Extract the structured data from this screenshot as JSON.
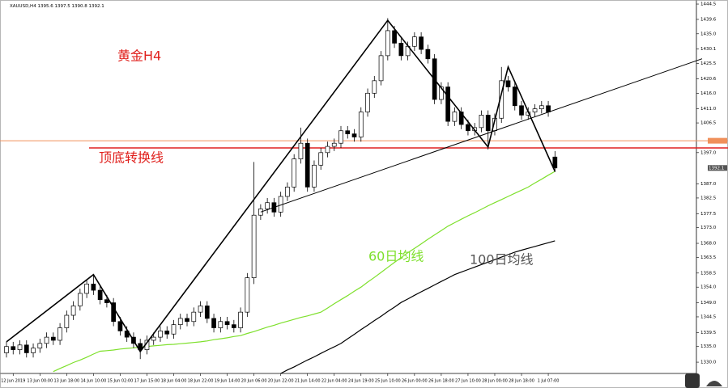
{
  "symbol": "XAUUSD,H4",
  "chart_data": {
    "type": "candlestick",
    "categories": [
      null,
      "12 Jun 2019",
      null,
      null,
      null,
      "13 Jun 00:00",
      null,
      null,
      null,
      "13 Jun 18:00",
      null,
      null,
      null,
      "14 Jun 10:00",
      null,
      null,
      null,
      "15 Jun 02:00",
      null,
      null,
      null,
      "17 Jun 15:00",
      null,
      null,
      null,
      "18 Jun 04:00",
      null,
      null,
      null,
      "18 Jun 22:00",
      null,
      null,
      null,
      "19 Jun 14:00",
      null,
      null,
      null,
      "20 Jun 06:00",
      null,
      null,
      null,
      "20 Jun 22:00",
      null,
      null,
      null,
      "21 Jun 14:00",
      null,
      null,
      null,
      "22 Jun 04:00",
      null,
      null,
      null,
      "24 Jun 19:00",
      null,
      null,
      null,
      "25 Jun 10:00",
      null,
      null,
      null,
      "26 Jun 00:00",
      null,
      null,
      null,
      "26 Jun 18:00",
      null,
      null,
      null,
      "27 Jun 10:00",
      null,
      null,
      null,
      "28 Jun 00:00",
      null,
      null,
      null,
      "28 Jun 18:00",
      null,
      null,
      null,
      "1 Jul 07:00",
      null
    ],
    "candles": [
      [
        1333,
        1336.5,
        1331.5,
        1335
      ],
      [
        1335,
        1336.5,
        1332.5,
        1334
      ],
      [
        1334,
        1337,
        1332.5,
        1335.5
      ],
      [
        1335.5,
        1337,
        1331.5,
        1333
      ],
      [
        1333,
        1336,
        1331.5,
        1334.5
      ],
      [
        1334.5,
        1337.5,
        1333,
        1336
      ],
      [
        1336,
        1339.5,
        1334.5,
        1338
      ],
      [
        1338,
        1339.5,
        1335.5,
        1337
      ],
      [
        1337,
        1342.5,
        1335.5,
        1341
      ],
      [
        1341,
        1346.5,
        1339.5,
        1345
      ],
      [
        1345,
        1349.5,
        1343.5,
        1348
      ],
      [
        1348,
        1353.5,
        1346.5,
        1352
      ],
      [
        1352,
        1356.5,
        1350.5,
        1355
      ],
      [
        1355,
        1358,
        1351.5,
        1353
      ],
      [
        1353,
        1354.5,
        1348.5,
        1350
      ],
      [
        1350,
        1351.5,
        1347.5,
        1349
      ],
      [
        1349,
        1350.5,
        1341.5,
        1343
      ],
      [
        1343,
        1344.5,
        1338.5,
        1340
      ],
      [
        1340,
        1341.5,
        1336.5,
        1338
      ],
      [
        1338,
        1339.5,
        1334.5,
        1336
      ],
      [
        1336,
        1337.5,
        1331,
        1334
      ],
      [
        1334,
        1338.5,
        1332.5,
        1337
      ],
      [
        1337,
        1339.5,
        1335.5,
        1338
      ],
      [
        1338,
        1341.5,
        1336.5,
        1340
      ],
      [
        1340,
        1341.5,
        1337.5,
        1339
      ],
      [
        1339,
        1343.5,
        1337.5,
        1342
      ],
      [
        1342,
        1345.5,
        1340.5,
        1344
      ],
      [
        1344,
        1345.5,
        1341.5,
        1343
      ],
      [
        1343,
        1347.5,
        1341.5,
        1346
      ],
      [
        1346,
        1349.5,
        1344.5,
        1348
      ],
      [
        1348,
        1349.5,
        1342.5,
        1344
      ],
      [
        1344,
        1345.5,
        1339.5,
        1341
      ],
      [
        1341,
        1344.5,
        1339.5,
        1343
      ],
      [
        1343,
        1344.5,
        1340.5,
        1342
      ],
      [
        1342,
        1343.5,
        1339.5,
        1341
      ],
      [
        1341,
        1347.5,
        1339.5,
        1346
      ],
      [
        1346,
        1358.5,
        1344.5,
        1357
      ],
      [
        1357,
        1394,
        1355,
        1377
      ],
      [
        1377,
        1380.5,
        1375.5,
        1379
      ],
      [
        1379,
        1382.5,
        1377.5,
        1381
      ],
      [
        1381,
        1382.5,
        1376.5,
        1378
      ],
      [
        1378,
        1384.5,
        1376.5,
        1383
      ],
      [
        1383,
        1387.5,
        1381.5,
        1386
      ],
      [
        1386,
        1396.5,
        1384.5,
        1395
      ],
      [
        1395,
        1405,
        1393.5,
        1400
      ],
      [
        1400,
        1401.5,
        1384.5,
        1386
      ],
      [
        1386,
        1394.5,
        1384.5,
        1393
      ],
      [
        1393,
        1398.5,
        1391.5,
        1397
      ],
      [
        1397,
        1400.5,
        1395.5,
        1399
      ],
      [
        1399,
        1401.5,
        1397.5,
        1400
      ],
      [
        1400,
        1405.5,
        1398.5,
        1404
      ],
      [
        1404,
        1405.5,
        1401.5,
        1403
      ],
      [
        1403,
        1404.5,
        1400.5,
        1402
      ],
      [
        1402,
        1411.5,
        1400.5,
        1410
      ],
      [
        1410,
        1417.5,
        1408.5,
        1416
      ],
      [
        1416,
        1421.5,
        1414.5,
        1420
      ],
      [
        1420,
        1429.5,
        1418.5,
        1428
      ],
      [
        1428,
        1440,
        1426.5,
        1436
      ],
      [
        1436,
        1437.5,
        1430.5,
        1432
      ],
      [
        1432,
        1433.5,
        1426.5,
        1428
      ],
      [
        1428,
        1432.5,
        1426.5,
        1431
      ],
      [
        1431,
        1435.5,
        1429.5,
        1434
      ],
      [
        1434,
        1435.5,
        1428.5,
        1430
      ],
      [
        1430,
        1431.5,
        1425.5,
        1427
      ],
      [
        1427,
        1428.5,
        1412.5,
        1414
      ],
      [
        1414,
        1419.5,
        1412.5,
        1418
      ],
      [
        1418,
        1419.5,
        1405.5,
        1407
      ],
      [
        1407,
        1411.5,
        1405.5,
        1410
      ],
      [
        1410,
        1411.5,
        1404.5,
        1406
      ],
      [
        1406,
        1407.5,
        1402.5,
        1404
      ],
      [
        1404,
        1406.5,
        1402.5,
        1405
      ],
      [
        1405,
        1410.5,
        1403.5,
        1409
      ],
      [
        1409,
        1410.5,
        1398,
        1404
      ],
      [
        1404,
        1409.5,
        1402.5,
        1408
      ],
      [
        1408,
        1424.4,
        1406.5,
        1420
      ],
      [
        1420,
        1421.5,
        1416.5,
        1418
      ],
      [
        1418,
        1419.5,
        1410.5,
        1412
      ],
      [
        1412,
        1413.5,
        1407.5,
        1409
      ],
      [
        1409,
        1411.5,
        1407.5,
        1410
      ],
      [
        1410,
        1412.5,
        1408.5,
        1411
      ],
      [
        1411,
        1413.5,
        1409.5,
        1412
      ],
      [
        1412,
        1413.5,
        1408.5,
        1410
      ],
      [
        1395.6,
        1397.5,
        1390.8,
        1392.1
      ]
    ],
    "ylim": [
      1326.4,
      1445.8
    ],
    "yticks": [
      1444.5,
      1439.6,
      {
        "value": 1435.0,
        "label": "1435.0"
      },
      1430.1,
      1425.5,
      1420.6,
      {
        "value": 1416.0,
        "label": "1416.0"
      },
      {
        "value": 1411.0,
        "label": "1411.0"
      },
      1406.5,
      {
        "value": 1397.0,
        "label": "1397.0"
      },
      {
        "value": 1387.0,
        "label": "1387.0"
      },
      1382.5,
      1377.5,
      {
        "value": 1373.0,
        "label": "1373.0"
      },
      {
        "value": 1368.0,
        "label": "1368.0"
      },
      1363.5,
      1358.5,
      {
        "value": 1354.0,
        "label": "1354.0"
      },
      {
        "value": 1349.0,
        "label": "1349.0"
      },
      1344.5,
      1339.5,
      {
        "value": 1335.0,
        "label": "1335.0"
      },
      {
        "value": 1330.0,
        "label": "1330.0"
      }
    ],
    "series": [
      {
        "name": "60日均线",
        "color": "#7ee02c",
        "values": [
          null,
          null,
          null,
          null,
          null,
          null,
          null,
          1327.0,
          1328.0,
          1328.9,
          1329.9,
          1330.7,
          1331.6,
          1332.6,
          1333.5,
          1333.7,
          1333.9,
          1334.2,
          1334.4,
          1334.6,
          1334.8,
          1335.0,
          1335.2,
          1335.4,
          1335.6,
          1335.7,
          1335.9,
          1336.1,
          1336.3,
          1336.5,
          1336.8,
          1337.2,
          1337.5,
          1337.8,
          1338.2,
          1338.5,
          1339.2,
          1339.8,
          1340.5,
          1341.2,
          1341.8,
          1342.5,
          1343.1,
          1343.7,
          1344.3,
          1344.8,
          1345.4,
          1346.0,
          1347.3,
          1348.7,
          1350.0,
          1351.3,
          1352.7,
          1354.0,
          1355.6,
          1357.1,
          1358.7,
          1360.3,
          1361.9,
          1363.4,
          1365.0,
          1366.4,
          1367.8,
          1369.3,
          1370.7,
          1372.1,
          1373.5,
          1374.6,
          1375.7,
          1376.8,
          1377.8,
          1378.9,
          1380.0,
          1381.0,
          1382.0,
          1383.0,
          1384.0,
          1385.0,
          1386.0,
          1387.3,
          1388.5,
          1389.8,
          1391.0
        ]
      },
      {
        "name": "100日均线",
        "color": "#000000",
        "values": [
          null,
          null,
          null,
          null,
          null,
          null,
          null,
          null,
          null,
          null,
          null,
          null,
          null,
          null,
          null,
          null,
          null,
          null,
          null,
          null,
          null,
          null,
          null,
          null,
          null,
          null,
          null,
          null,
          null,
          null,
          null,
          null,
          null,
          null,
          null,
          null,
          null,
          null,
          null,
          null,
          null,
          1326.4,
          1327.5,
          1328.5,
          1329.6,
          1330.7,
          1331.7,
          1332.8,
          1333.9,
          1334.9,
          1336.0,
          1337.5,
          1338.9,
          1340.4,
          1341.8,
          1343.3,
          1344.7,
          1346.2,
          1347.6,
          1349.1,
          1350.2,
          1351.4,
          1352.5,
          1353.6,
          1354.7,
          1355.8,
          1356.9,
          1358.0,
          1358.8,
          1359.6,
          1360.4,
          1361.2,
          1362.0,
          1362.8,
          1363.6,
          1364.4,
          1365.2,
          1365.8,
          1366.4,
          1367.0,
          1367.6,
          1368.2,
          1368.8
        ]
      }
    ],
    "lines": [
      {
        "color": "#000000",
        "x": [
          0,
          13,
          20,
          57,
          72,
          75,
          82
        ],
        "values": [
          1336.5,
          1358,
          1333.4,
          1439.3,
          1398.8,
          1424.4,
          1391
        ]
      },
      {
        "color": "#000000",
        "x": [
          38,
          104
        ],
        "values": [
          1378,
          1427
        ]
      }
    ],
    "hlines": [
      {
        "value": 1400.8,
        "color": "#f0905a"
      },
      {
        "value": 1398.5,
        "color": "#e02020"
      }
    ],
    "annotations": [
      {
        "text": "黄金H4",
        "color": "#e0201c"
      },
      {
        "text": "顶底转换线",
        "color": "#e0201c"
      }
    ]
  }
}
